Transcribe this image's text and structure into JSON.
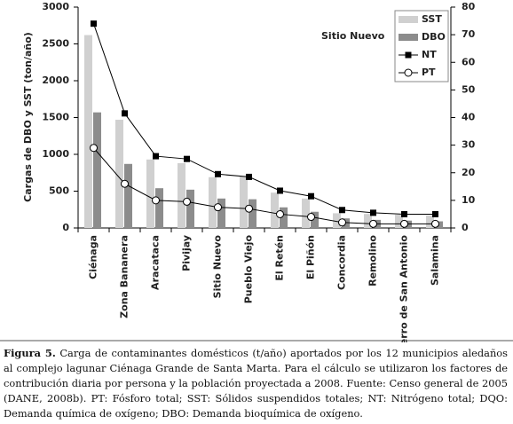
{
  "chart_data": {
    "type": "bar-line",
    "y_label": "Cargas de DBO y SST (ton/año)",
    "annotation": "Sitio Nuevo",
    "categories": [
      "Ciénaga",
      "Zona Bananera",
      "Aracataca",
      "Pivijay",
      "Sitio Nuevo",
      "Pueblo Viejo",
      "El Retén",
      "El Piñón",
      "Concordia",
      "Remolino",
      "Cerro de San Antonio",
      "Salamina"
    ],
    "series": [
      {
        "name": "SST",
        "kind": "bar",
        "color": "#d0d0d0",
        "values": [
          2620,
          1470,
          930,
          880,
          690,
          700,
          480,
          400,
          200,
          190,
          180,
          170
        ]
      },
      {
        "name": "DBO",
        "kind": "bar",
        "color": "#8c8c8c",
        "values": [
          1570,
          870,
          540,
          520,
          400,
          390,
          280,
          220,
          130,
          110,
          100,
          90
        ]
      },
      {
        "name": "NT",
        "kind": "line",
        "marker": "square",
        "color": "#000000",
        "axis": "y2",
        "values": [
          74,
          41.5,
          26,
          25,
          19.5,
          18.5,
          13.5,
          11.5,
          6.5,
          5.5,
          5,
          5
        ]
      },
      {
        "name": "PT",
        "kind": "line",
        "marker": "circle",
        "color": "#000000",
        "axis": "y2",
        "values": [
          29,
          16,
          10,
          9.5,
          7.5,
          7,
          5,
          4,
          2,
          1.5,
          1.5,
          1.5
        ]
      }
    ],
    "ylim": [
      0,
      3000
    ],
    "yticks": [
      0,
      500,
      1000,
      1500,
      2000,
      2500,
      3000
    ],
    "y2lim": [
      0,
      80
    ],
    "y2ticks": [
      0,
      10,
      20,
      30,
      40,
      50,
      60,
      70,
      80
    ],
    "legend": "top-right"
  },
  "caption_label": "Figura 5.",
  "caption": "Carga de contaminantes domésticos (t/año) aportados por los 12 municipios aledaños al complejo lagunar Ciénaga Grande de Santa Marta. Para el cálculo se utilizaron los factores de contribución diaria por persona y la población proyectada a 2008. Fuente: Censo general de 2005 (DANE, 2008b). PT: Fósforo total; SST: Sólidos suspendidos totales; NT: Nitrógeno total; DQO: Demanda química de oxígeno; DBO: Demanda bioquímica de oxígeno."
}
